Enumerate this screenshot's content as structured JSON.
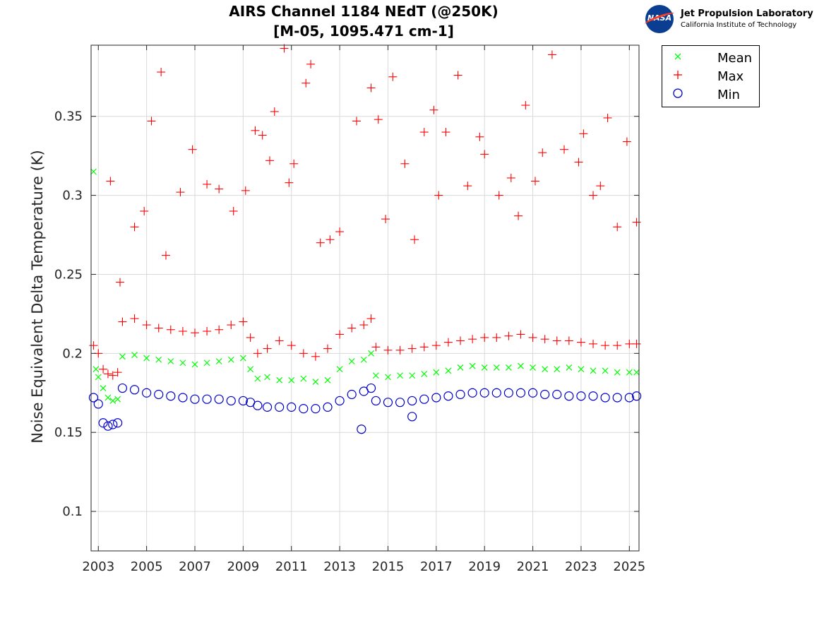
{
  "title": {
    "line1": "AIRS Channel 1184 NEdT (@250K)",
    "line2": "[M-05, 1095.471 cm-1]"
  },
  "logo": {
    "org": "Jet Propulsion Laboratory",
    "sub": "California Institute of Technology",
    "badge": "NASA"
  },
  "colors": {
    "mean": "#00ff00",
    "max": "#ff0000",
    "min": "#0000cc",
    "grid": "#d9d9d9",
    "axis": "#262626"
  },
  "chart_data": {
    "type": "scatter",
    "title": "AIRS Channel 1184 NEdT (@250K) [M-05, 1095.471 cm-1]",
    "xlabel": "",
    "ylabel": "Noise Equivalent Delta Temperature (K)",
    "xlim": [
      2002.7,
      2025.4
    ],
    "ylim": [
      0.075,
      0.395
    ],
    "xticks": [
      2003,
      2005,
      2007,
      2009,
      2011,
      2013,
      2015,
      2017,
      2019,
      2021,
      2023,
      2025
    ],
    "yticks": [
      0.1,
      0.15,
      0.2,
      0.25,
      0.3,
      0.35
    ],
    "ytick_labels": [
      "0.1",
      "0.15",
      "0.2",
      "0.25",
      "0.3",
      "0.35"
    ],
    "grid": true,
    "legend_position": "outside-top-right",
    "legend": [
      "Mean",
      "Max",
      "Min"
    ],
    "series": [
      {
        "name": "Mean",
        "marker": "x",
        "x": [
          2002.8,
          2002.9,
          2003.0,
          2003.2,
          2003.4,
          2003.6,
          2003.8,
          2004.0,
          2004.5,
          2005.0,
          2005.5,
          2006.0,
          2006.5,
          2007.0,
          2007.5,
          2008.0,
          2008.5,
          2009.0,
          2009.3,
          2009.6,
          2010.0,
          2010.5,
          2011.0,
          2011.5,
          2012.0,
          2012.5,
          2013.0,
          2013.5,
          2014.0,
          2014.3,
          2014.5,
          2015.0,
          2015.5,
          2016.0,
          2016.5,
          2017.0,
          2017.5,
          2018.0,
          2018.5,
          2019.0,
          2019.5,
          2020.0,
          2020.5,
          2021.0,
          2021.5,
          2022.0,
          2022.5,
          2023.0,
          2023.5,
          2024.0,
          2024.5,
          2025.0,
          2025.3
        ],
        "y": [
          0.315,
          0.19,
          0.185,
          0.178,
          0.172,
          0.17,
          0.171,
          0.198,
          0.199,
          0.197,
          0.196,
          0.195,
          0.194,
          0.193,
          0.194,
          0.195,
          0.196,
          0.197,
          0.19,
          0.184,
          0.185,
          0.183,
          0.183,
          0.184,
          0.182,
          0.183,
          0.19,
          0.195,
          0.196,
          0.2,
          0.186,
          0.185,
          0.186,
          0.186,
          0.187,
          0.188,
          0.189,
          0.191,
          0.192,
          0.191,
          0.191,
          0.191,
          0.192,
          0.191,
          0.19,
          0.19,
          0.191,
          0.19,
          0.189,
          0.189,
          0.188,
          0.188,
          0.188
        ]
      },
      {
        "name": "Max",
        "marker": "+",
        "x": [
          2002.8,
          2003.0,
          2003.2,
          2003.4,
          2003.6,
          2003.8,
          2004.0,
          2004.5,
          2005.0,
          2005.5,
          2006.0,
          2006.5,
          2007.0,
          2007.5,
          2008.0,
          2008.5,
          2009.0,
          2009.3,
          2009.6,
          2010.0,
          2010.5,
          2011.0,
          2011.5,
          2012.0,
          2012.5,
          2013.0,
          2013.5,
          2014.0,
          2014.3,
          2014.5,
          2015.0,
          2015.5,
          2016.0,
          2016.5,
          2017.0,
          2017.5,
          2018.0,
          2018.5,
          2019.0,
          2019.5,
          2020.0,
          2020.5,
          2021.0,
          2021.5,
          2022.0,
          2022.5,
          2023.0,
          2023.5,
          2024.0,
          2024.5,
          2025.0,
          2025.3
        ],
        "y": [
          0.205,
          0.2,
          0.19,
          0.187,
          0.186,
          0.188,
          0.22,
          0.222,
          0.218,
          0.216,
          0.215,
          0.214,
          0.213,
          0.214,
          0.215,
          0.218,
          0.22,
          0.21,
          0.2,
          0.203,
          0.208,
          0.205,
          0.2,
          0.198,
          0.203,
          0.212,
          0.216,
          0.218,
          0.222,
          0.204,
          0.202,
          0.202,
          0.203,
          0.204,
          0.205,
          0.207,
          0.208,
          0.209,
          0.21,
          0.21,
          0.211,
          0.212,
          0.21,
          0.209,
          0.208,
          0.208,
          0.207,
          0.206,
          0.205,
          0.205,
          0.206,
          0.206
        ]
      },
      {
        "name": "Max (outliers)",
        "marker": "+",
        "x": [
          2003.5,
          2003.9,
          2004.5,
          2004.9,
          2005.2,
          2005.6,
          2005.8,
          2006.4,
          2006.9,
          2007.5,
          2008.0,
          2008.6,
          2009.1,
          2009.5,
          2009.8,
          2010.1,
          2010.3,
          2010.7,
          2010.9,
          2011.1,
          2011.6,
          2011.8,
          2012.2,
          2012.6,
          2013.0,
          2013.7,
          2014.3,
          2014.6,
          2014.9,
          2015.2,
          2015.7,
          2016.1,
          2016.5,
          2016.9,
          2017.1,
          2017.4,
          2017.9,
          2018.3,
          2018.8,
          2019.0,
          2019.6,
          2020.1,
          2020.4,
          2020.7,
          2021.1,
          2021.4,
          2021.8,
          2022.3,
          2022.9,
          2023.1,
          2023.5,
          2023.8,
          2024.1,
          2024.5,
          2024.9,
          2025.3
        ],
        "y": [
          0.309,
          0.245,
          0.28,
          0.29,
          0.347,
          0.378,
          0.262,
          0.302,
          0.329,
          0.307,
          0.304,
          0.29,
          0.303,
          0.341,
          0.338,
          0.322,
          0.353,
          0.393,
          0.308,
          0.32,
          0.371,
          0.383,
          0.27,
          0.272,
          0.277,
          0.347,
          0.368,
          0.348,
          0.285,
          0.375,
          0.32,
          0.272,
          0.34,
          0.354,
          0.3,
          0.34,
          0.376,
          0.306,
          0.337,
          0.326,
          0.3,
          0.311,
          0.287,
          0.357,
          0.309,
          0.327,
          0.389,
          0.329,
          0.321,
          0.339,
          0.3,
          0.306,
          0.349,
          0.28,
          0.334,
          0.283
        ]
      },
      {
        "name": "Min",
        "marker": "o",
        "x": [
          2002.8,
          2003.0,
          2003.2,
          2003.4,
          2003.6,
          2003.8,
          2004.0,
          2004.5,
          2005.0,
          2005.5,
          2006.0,
          2006.5,
          2007.0,
          2007.5,
          2008.0,
          2008.5,
          2009.0,
          2009.3,
          2009.6,
          2010.0,
          2010.5,
          2011.0,
          2011.5,
          2012.0,
          2012.5,
          2013.0,
          2013.5,
          2014.0,
          2014.3,
          2014.5,
          2015.0,
          2015.5,
          2016.0,
          2016.5,
          2017.0,
          2017.5,
          2018.0,
          2018.5,
          2019.0,
          2019.5,
          2020.0,
          2020.5,
          2021.0,
          2021.5,
          2022.0,
          2022.5,
          2023.0,
          2023.5,
          2024.0,
          2024.5,
          2025.0,
          2025.3
        ],
        "y": [
          0.172,
          0.168,
          0.156,
          0.154,
          0.155,
          0.156,
          0.178,
          0.177,
          0.175,
          0.174,
          0.173,
          0.172,
          0.171,
          0.171,
          0.171,
          0.17,
          0.17,
          0.169,
          0.167,
          0.166,
          0.166,
          0.166,
          0.165,
          0.165,
          0.166,
          0.17,
          0.174,
          0.176,
          0.178,
          0.17,
          0.169,
          0.169,
          0.17,
          0.171,
          0.172,
          0.173,
          0.174,
          0.175,
          0.175,
          0.175,
          0.175,
          0.175,
          0.175,
          0.174,
          0.174,
          0.173,
          0.173,
          0.173,
          0.172,
          0.172,
          0.172,
          0.173
        ]
      },
      {
        "name": "Min (outliers)",
        "marker": "o",
        "x": [
          2013.9,
          2016.0
        ],
        "y": [
          0.152,
          0.16
        ]
      }
    ]
  }
}
